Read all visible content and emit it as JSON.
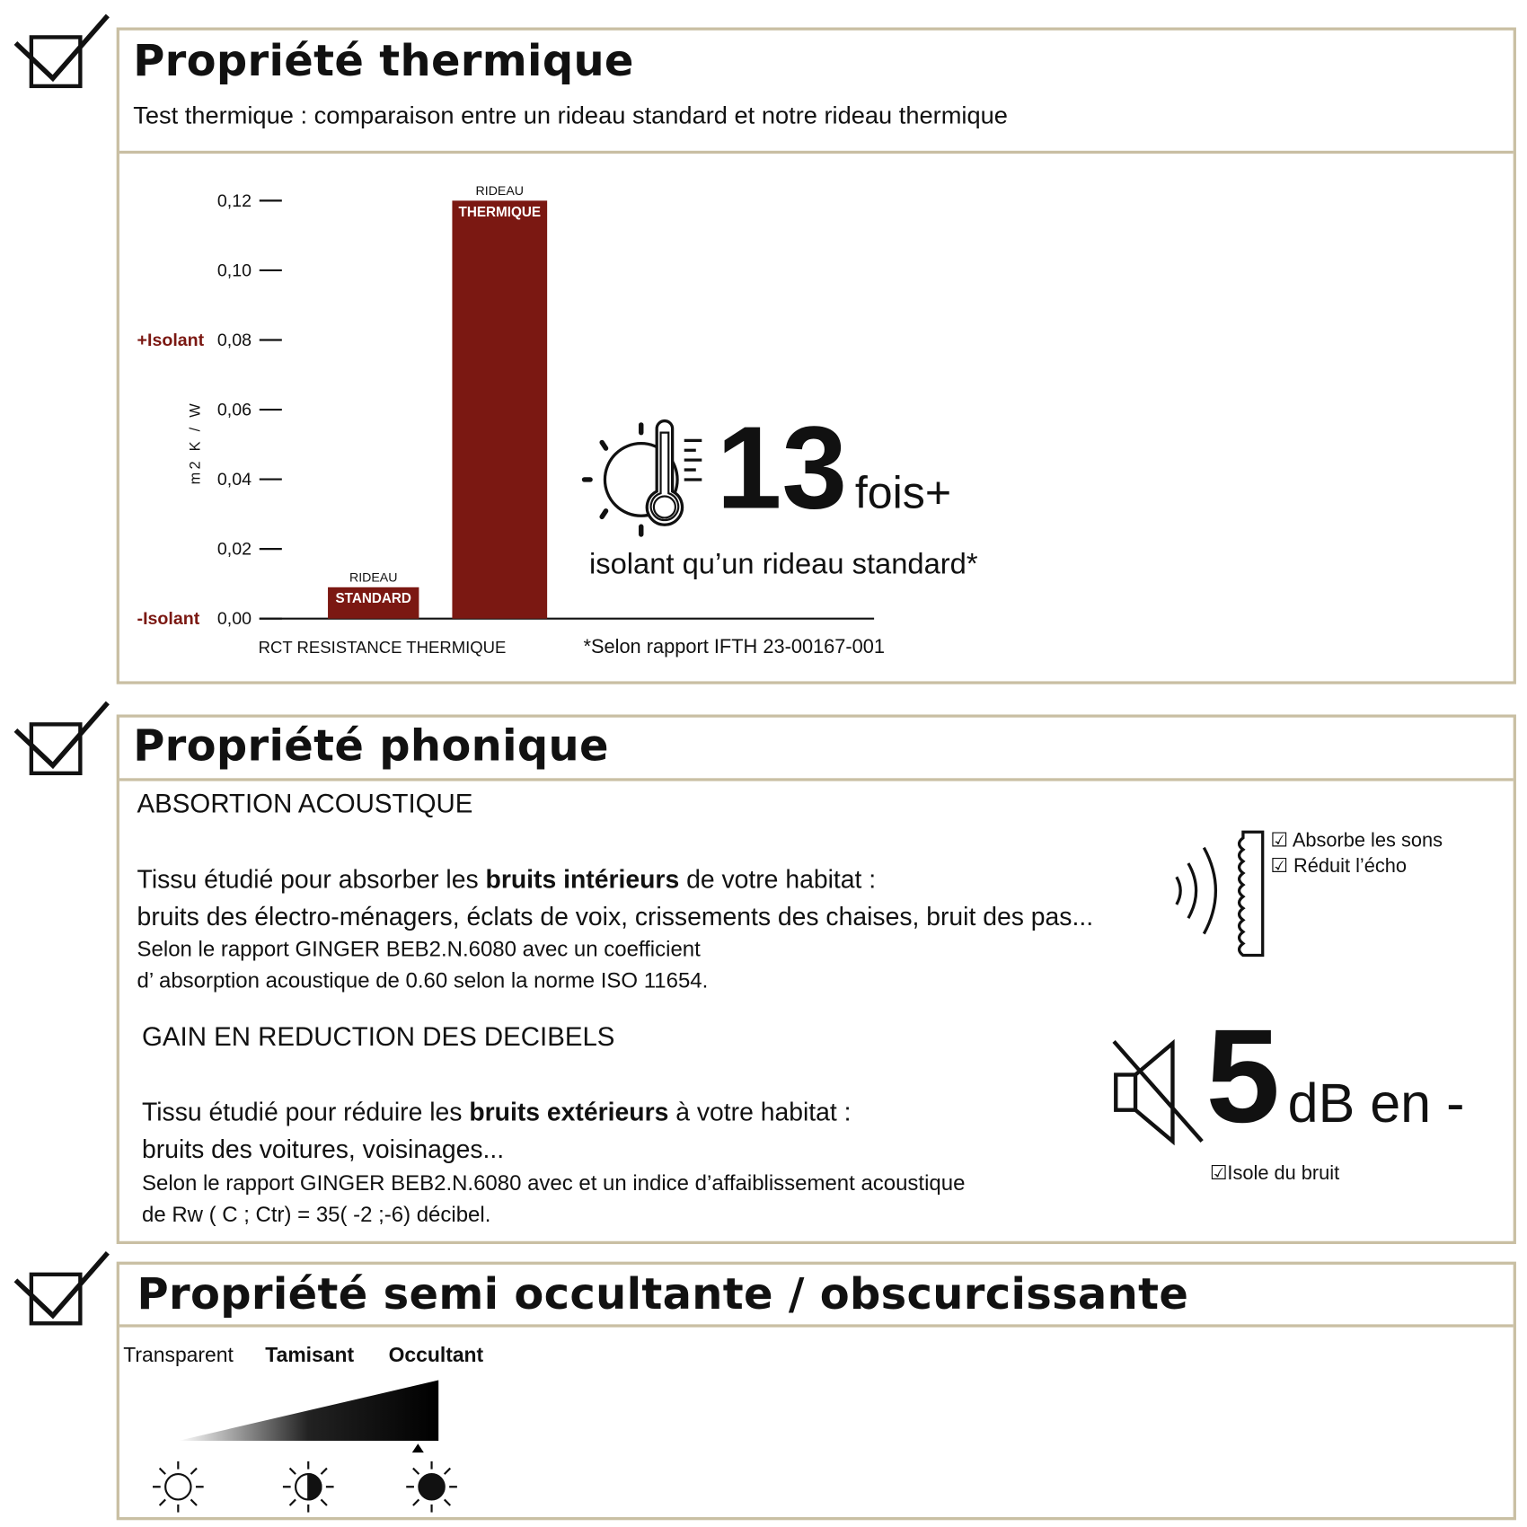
{
  "thermal": {
    "title": "Propriété thermique",
    "subtitle": "Test thermique : comparaison entre un rideau standard et notre rideau thermique",
    "highlight_number": "13",
    "highlight_unit": "fois+",
    "highlight_caption": "isolant qu’un rideau standard*",
    "footnote": "*Selon rapport IFTH 23-00167-001",
    "icon": "sun-thermometer-icon"
  },
  "chart_data": {
    "type": "bar",
    "categories": [
      "RIDEAU STANDARD",
      "RIDEAU THERMIQUE"
    ],
    "category_top": [
      "RIDEAU",
      "RIDEAU"
    ],
    "category_inner": [
      "STANDARD",
      "THERMIQUE"
    ],
    "values": [
      0.009,
      0.12
    ],
    "ylabel": "m2 K / W",
    "xlabel": "RCT RESISTANCE THERMIQUE",
    "ylim": [
      0,
      0.12
    ],
    "yticks": [
      "0,00",
      "0,02",
      "0,04",
      "0,06",
      "0,08",
      "0,10",
      "0,12"
    ],
    "ytick_values": [
      0,
      0.02,
      0.04,
      0.06,
      0.08,
      0.1,
      0.12
    ],
    "annotations": [
      {
        "text": "+Isolant",
        "y": 0.08
      },
      {
        "text": "-Isolant",
        "y": 0
      }
    ],
    "bar_color": "#7b1812",
    "annotation_color": "#7b1812",
    "grid": false
  },
  "acoustic": {
    "title": "Propriété phonique",
    "absorption_heading": "ABSORTION ACOUSTIQUE",
    "absorption_line1_pre": "Tissu étudié pour absorber les ",
    "absorption_line1_bold": "bruits intérieurs",
    "absorption_line1_post": " de votre habitat :",
    "absorption_line2": "bruits des électro-ménagers, éclats de voix, crissements des chaises, bruit des pas...",
    "absorption_line3": "Selon le rapport GINGER BEB2.N.6080 avec un coefficient",
    "absorption_line4": "d’ absorption acoustique de 0.60 selon la norme ISO  11654.",
    "checks": [
      "Absorbe les sons",
      "Réduit l’écho"
    ],
    "reduction_heading": "GAIN EN REDUCTION DES DECIBELS",
    "reduction_line1_pre": "Tissu étudié pour réduire les ",
    "reduction_line1_bold": "bruits extérieurs",
    "reduction_line1_post": " à votre habitat :",
    "reduction_line2": "bruits des voitures, voisinages...",
    "reduction_line3": "Selon le rapport GINGER BEB2.N.6080 avec et un indice d’affaiblissement acoustique",
    "reduction_line4": "de Rw ( C ; Ctr) = 35( -2 ;-6) décibel.",
    "db_number": "5",
    "db_unit": "dB en -",
    "db_check": "Isole du bruit"
  },
  "opacity": {
    "title": "Propriété semi occultante / obscurcissante",
    "levels": [
      "Transparent",
      "Tamisant",
      "Occultant"
    ],
    "selected": "Occultant"
  },
  "colors": {
    "border": "#c9bfa3",
    "accent": "#7b1812"
  }
}
